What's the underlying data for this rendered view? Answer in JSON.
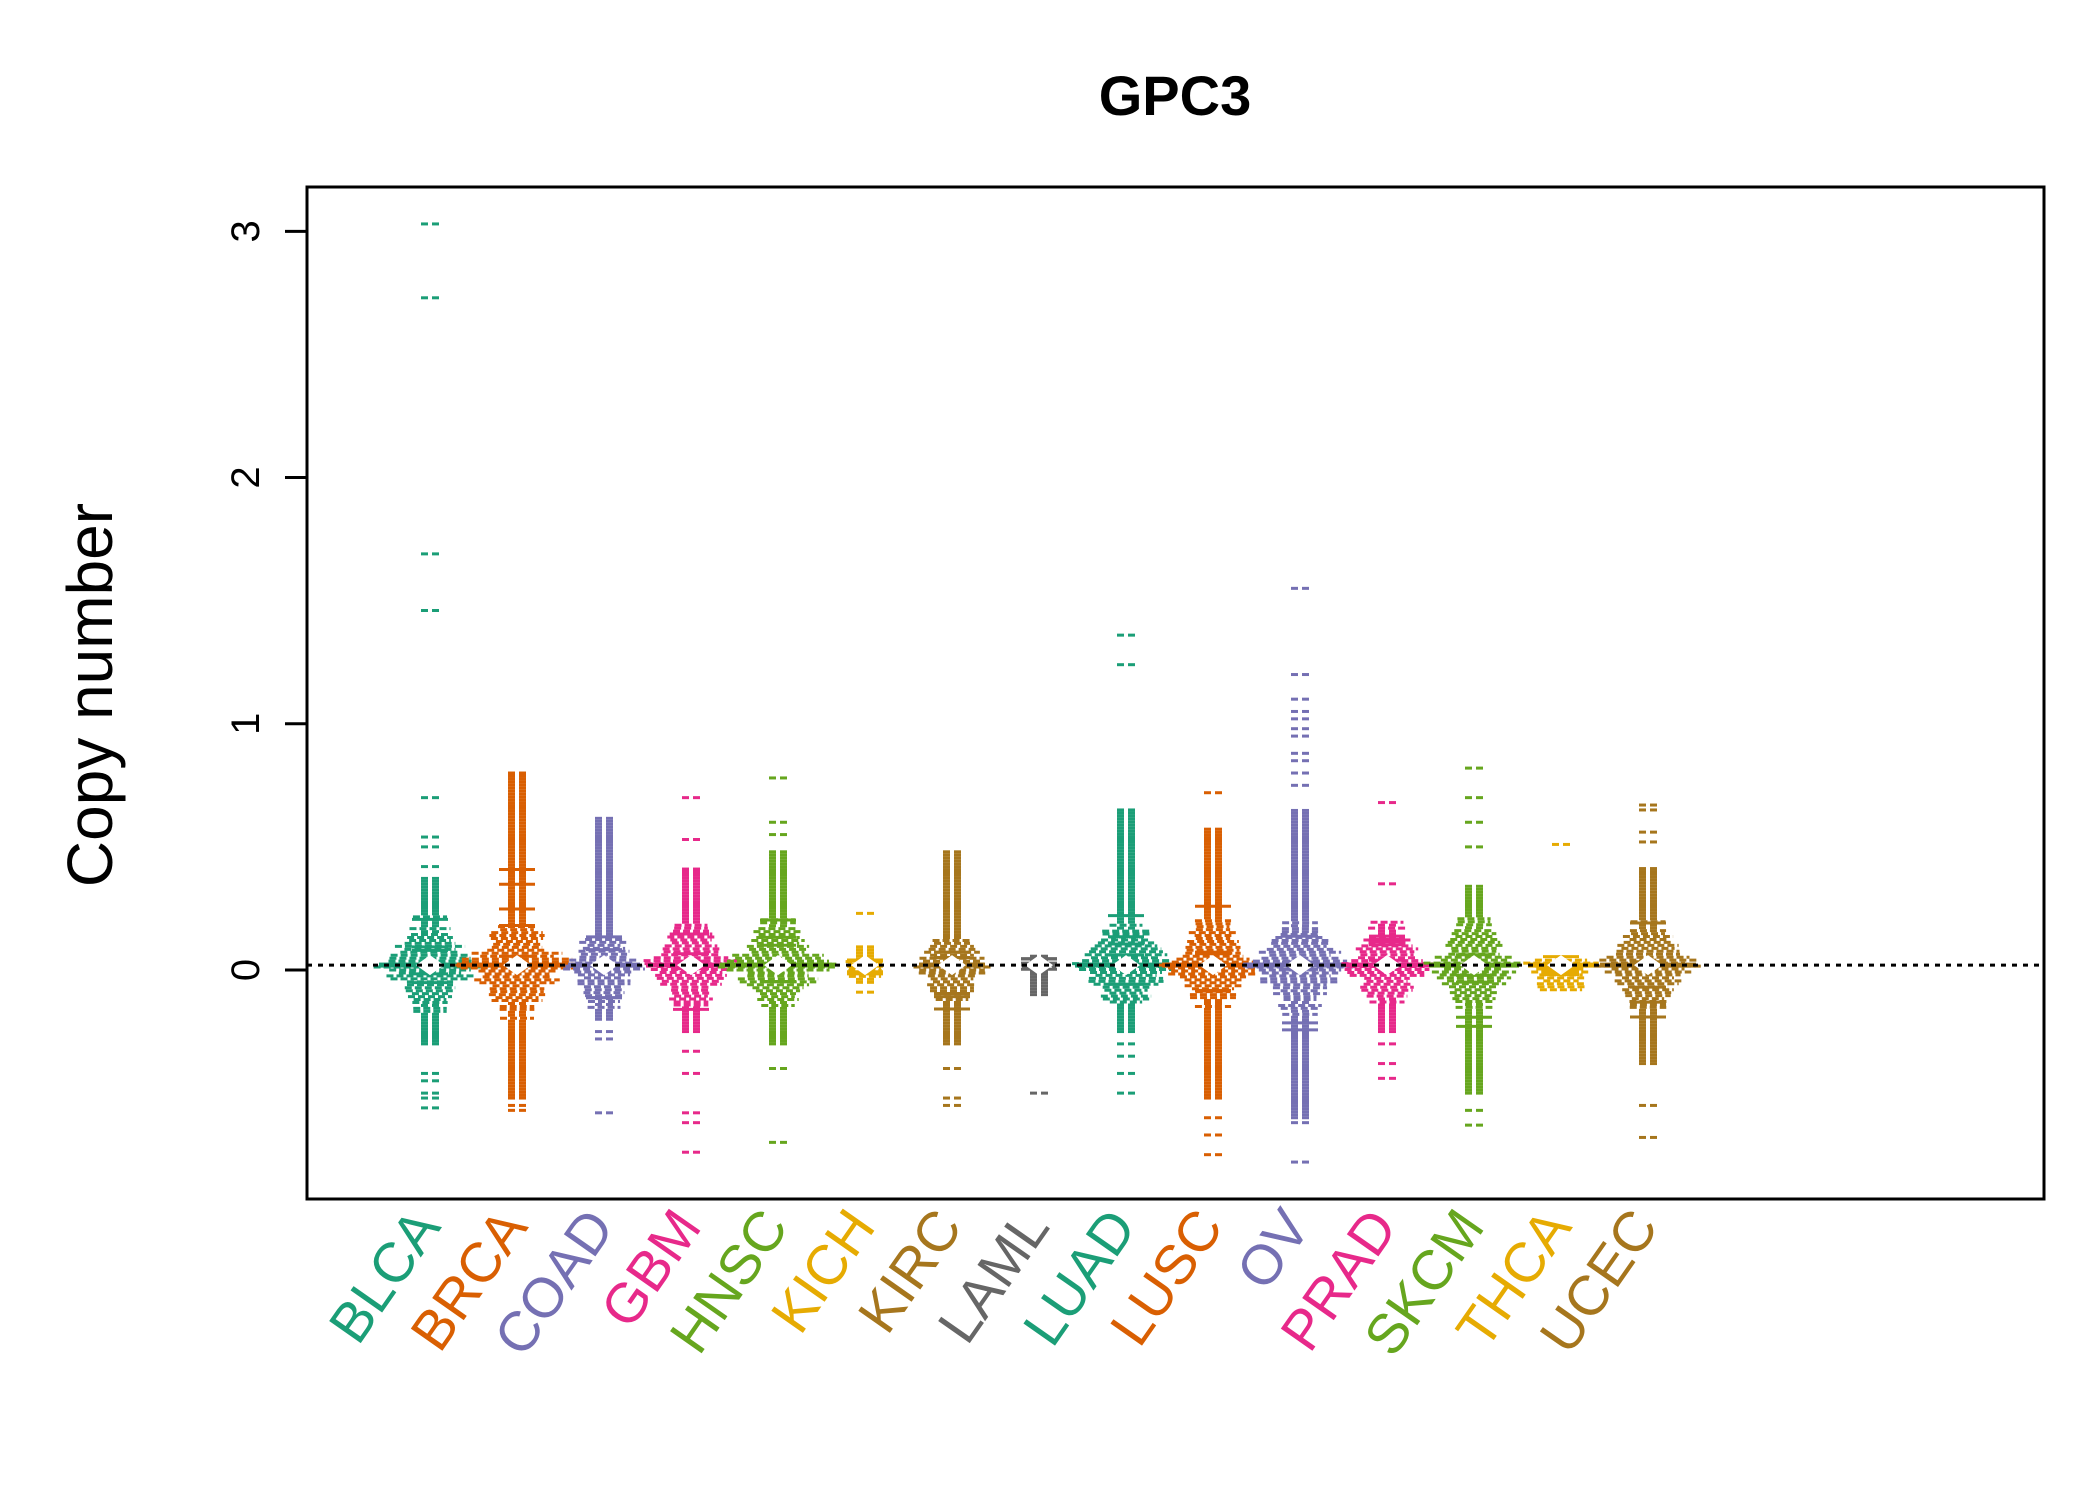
{
  "chart_data": {
    "type": "beeswarm",
    "title": "GPC3",
    "xlabel": "",
    "ylabel": "Copy number",
    "ylim": [
      -0.93,
      3.18
    ],
    "yticks": [
      0,
      1,
      2,
      3
    ],
    "reference_line": 0.02,
    "grid": false,
    "categories": [
      "BLCA",
      "BRCA",
      "COAD",
      "GBM",
      "HNSC",
      "KICH",
      "KIRC",
      "LAML",
      "LUAD",
      "LUSC",
      "OV",
      "PRAD",
      "SKCM",
      "THCA",
      "UCEC"
    ],
    "colors": [
      "#1B9E77",
      "#D95F02",
      "#7570B3",
      "#E7298A",
      "#66A61E",
      "#E6AB02",
      "#A6761D",
      "#666666",
      "#1B9E77",
      "#D95F02",
      "#7570B3",
      "#E7298A",
      "#66A61E",
      "#E6AB02",
      "#A6761D"
    ],
    "series": [
      {
        "name": "BLCA",
        "center_spread": 0.85,
        "dense_range": [
          -0.3,
          0.38
        ],
        "outliers": [
          3.03,
          2.73,
          1.69,
          1.46,
          0.7,
          0.54,
          0.5,
          0.42,
          -0.42,
          -0.45,
          -0.5,
          -0.52,
          -0.56
        ]
      },
      {
        "name": "BRCA",
        "center_spread": 1.0,
        "dense_range": [
          -0.52,
          0.8
        ],
        "outliers": [
          -0.55,
          -0.57
        ]
      },
      {
        "name": "COAD",
        "center_spread": 0.6,
        "dense_range": [
          -0.2,
          0.62
        ],
        "outliers": [
          -0.25,
          -0.28,
          -0.58
        ]
      },
      {
        "name": "GBM",
        "center_spread": 0.75,
        "dense_range": [
          -0.25,
          0.42
        ],
        "outliers": [
          0.7,
          0.53,
          -0.33,
          -0.42,
          -0.58,
          -0.62,
          -0.74
        ]
      },
      {
        "name": "HNSC",
        "center_spread": 0.9,
        "dense_range": [
          -0.3,
          0.48
        ],
        "outliers": [
          0.78,
          0.6,
          0.55,
          -0.4,
          -0.7
        ]
      },
      {
        "name": "KICH",
        "center_spread": 0.2,
        "dense_range": [
          -0.05,
          0.1
        ],
        "outliers": [
          0.23,
          -0.09
        ]
      },
      {
        "name": "KIRC",
        "center_spread": 0.55,
        "dense_range": [
          -0.3,
          0.48
        ],
        "outliers": [
          -0.4,
          -0.52,
          -0.55
        ]
      },
      {
        "name": "LAML",
        "center_spread": 0.15,
        "dense_range": [
          -0.1,
          0.06
        ],
        "outliers": [
          -0.5
        ]
      },
      {
        "name": "LUAD",
        "center_spread": 0.85,
        "dense_range": [
          -0.25,
          0.65
        ],
        "outliers": [
          1.36,
          1.24,
          -0.3,
          -0.35,
          -0.42,
          -0.5
        ]
      },
      {
        "name": "LUSC",
        "center_spread": 0.85,
        "dense_range": [
          -0.52,
          0.58
        ],
        "outliers": [
          0.72,
          -0.6,
          -0.67,
          -0.75
        ]
      },
      {
        "name": "OV",
        "center_spread": 0.95,
        "dense_range": [
          -0.6,
          0.65
        ],
        "outliers": [
          1.55,
          1.2,
          1.1,
          1.05,
          1.02,
          0.98,
          0.95,
          0.88,
          0.85,
          0.8,
          0.75,
          -0.62,
          -0.78
        ]
      },
      {
        "name": "PRAD",
        "center_spread": 0.7,
        "dense_range": [
          -0.25,
          0.2
        ],
        "outliers": [
          0.68,
          0.35,
          -0.3,
          -0.38,
          -0.44
        ]
      },
      {
        "name": "SKCM",
        "center_spread": 0.75,
        "dense_range": [
          -0.5,
          0.35
        ],
        "outliers": [
          0.82,
          0.7,
          0.6,
          0.5,
          -0.57,
          -0.63
        ]
      },
      {
        "name": "THCA",
        "center_spread": 0.55,
        "dense_range": [
          -0.08,
          0.05
        ],
        "outliers": [
          0.51
        ]
      },
      {
        "name": "UCEC",
        "center_spread": 0.8,
        "dense_range": [
          -0.38,
          0.42
        ],
        "outliers": [
          0.67,
          0.65,
          0.56,
          0.52,
          -0.55,
          -0.68
        ]
      }
    ]
  }
}
